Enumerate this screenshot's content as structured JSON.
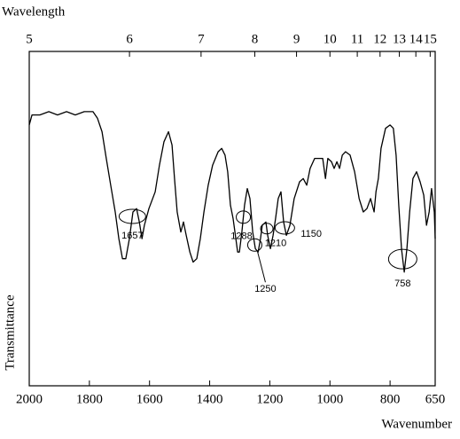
{
  "chart_data": {
    "type": "line",
    "top_axis_label": "Wavelength",
    "x_label": "Wavenumber",
    "y_label": "Transmittance",
    "xlim": [
      2000,
      650
    ],
    "xticks": [
      2000,
      1800,
      1600,
      1400,
      1200,
      1000,
      800,
      650
    ],
    "x2ticks": [
      5,
      6,
      7,
      8,
      9,
      10,
      11,
      12,
      13,
      14,
      15
    ],
    "ylim": [
      0,
      100
    ],
    "color": "#000000",
    "x": [
      2000,
      1991,
      1965,
      1935,
      1906,
      1876,
      1847,
      1817,
      1788,
      1773,
      1758,
      1744,
      1729,
      1714,
      1702,
      1690,
      1679,
      1667,
      1655,
      1643,
      1634,
      1625,
      1617,
      1602,
      1581,
      1567,
      1552,
      1537,
      1525,
      1517,
      1508,
      1496,
      1487,
      1478,
      1466,
      1455,
      1443,
      1431,
      1419,
      1405,
      1390,
      1372,
      1360,
      1349,
      1340,
      1331,
      1322,
      1313,
      1307,
      1301,
      1293,
      1284,
      1275,
      1266,
      1257,
      1248,
      1239,
      1231,
      1225,
      1213,
      1207,
      1198,
      1189,
      1181,
      1172,
      1163,
      1154,
      1145,
      1133,
      1119,
      1101,
      1089,
      1077,
      1066,
      1051,
      1036,
      1024,
      1015,
      1007,
      995,
      986,
      977,
      968,
      959,
      948,
      933,
      918,
      903,
      889,
      877,
      865,
      853,
      847,
      839,
      830,
      815,
      800,
      789,
      780,
      771,
      762,
      753,
      744,
      735,
      724,
      712,
      700,
      688,
      679,
      670,
      662,
      653,
      650
    ],
    "y": [
      78,
      81,
      81,
      82,
      81,
      82,
      81,
      82,
      82,
      80,
      76,
      68,
      60,
      52,
      44,
      38,
      38,
      44,
      52,
      53,
      49,
      44,
      48,
      53,
      58,
      66,
      73,
      76,
      72,
      62,
      52,
      46,
      49,
      45,
      40,
      37,
      38,
      44,
      52,
      60,
      66,
      70,
      71,
      69,
      64,
      54,
      50,
      44,
      40,
      40,
      46,
      54,
      59,
      56,
      46,
      41,
      40,
      44,
      48,
      49,
      45,
      41,
      45,
      50,
      56,
      58,
      49,
      45,
      48,
      56,
      61,
      62,
      60,
      65,
      68,
      68,
      68,
      62,
      68,
      67,
      65,
      67,
      65,
      69,
      70,
      69,
      64,
      56,
      52,
      53,
      56,
      52,
      58,
      62,
      71,
      77,
      78,
      77,
      69,
      54,
      41,
      34,
      41,
      52,
      62,
      64,
      61,
      57,
      48,
      52,
      59,
      52,
      44
    ],
    "annotations": [
      1657,
      1288,
      1250,
      1210,
      1150,
      758
    ]
  }
}
